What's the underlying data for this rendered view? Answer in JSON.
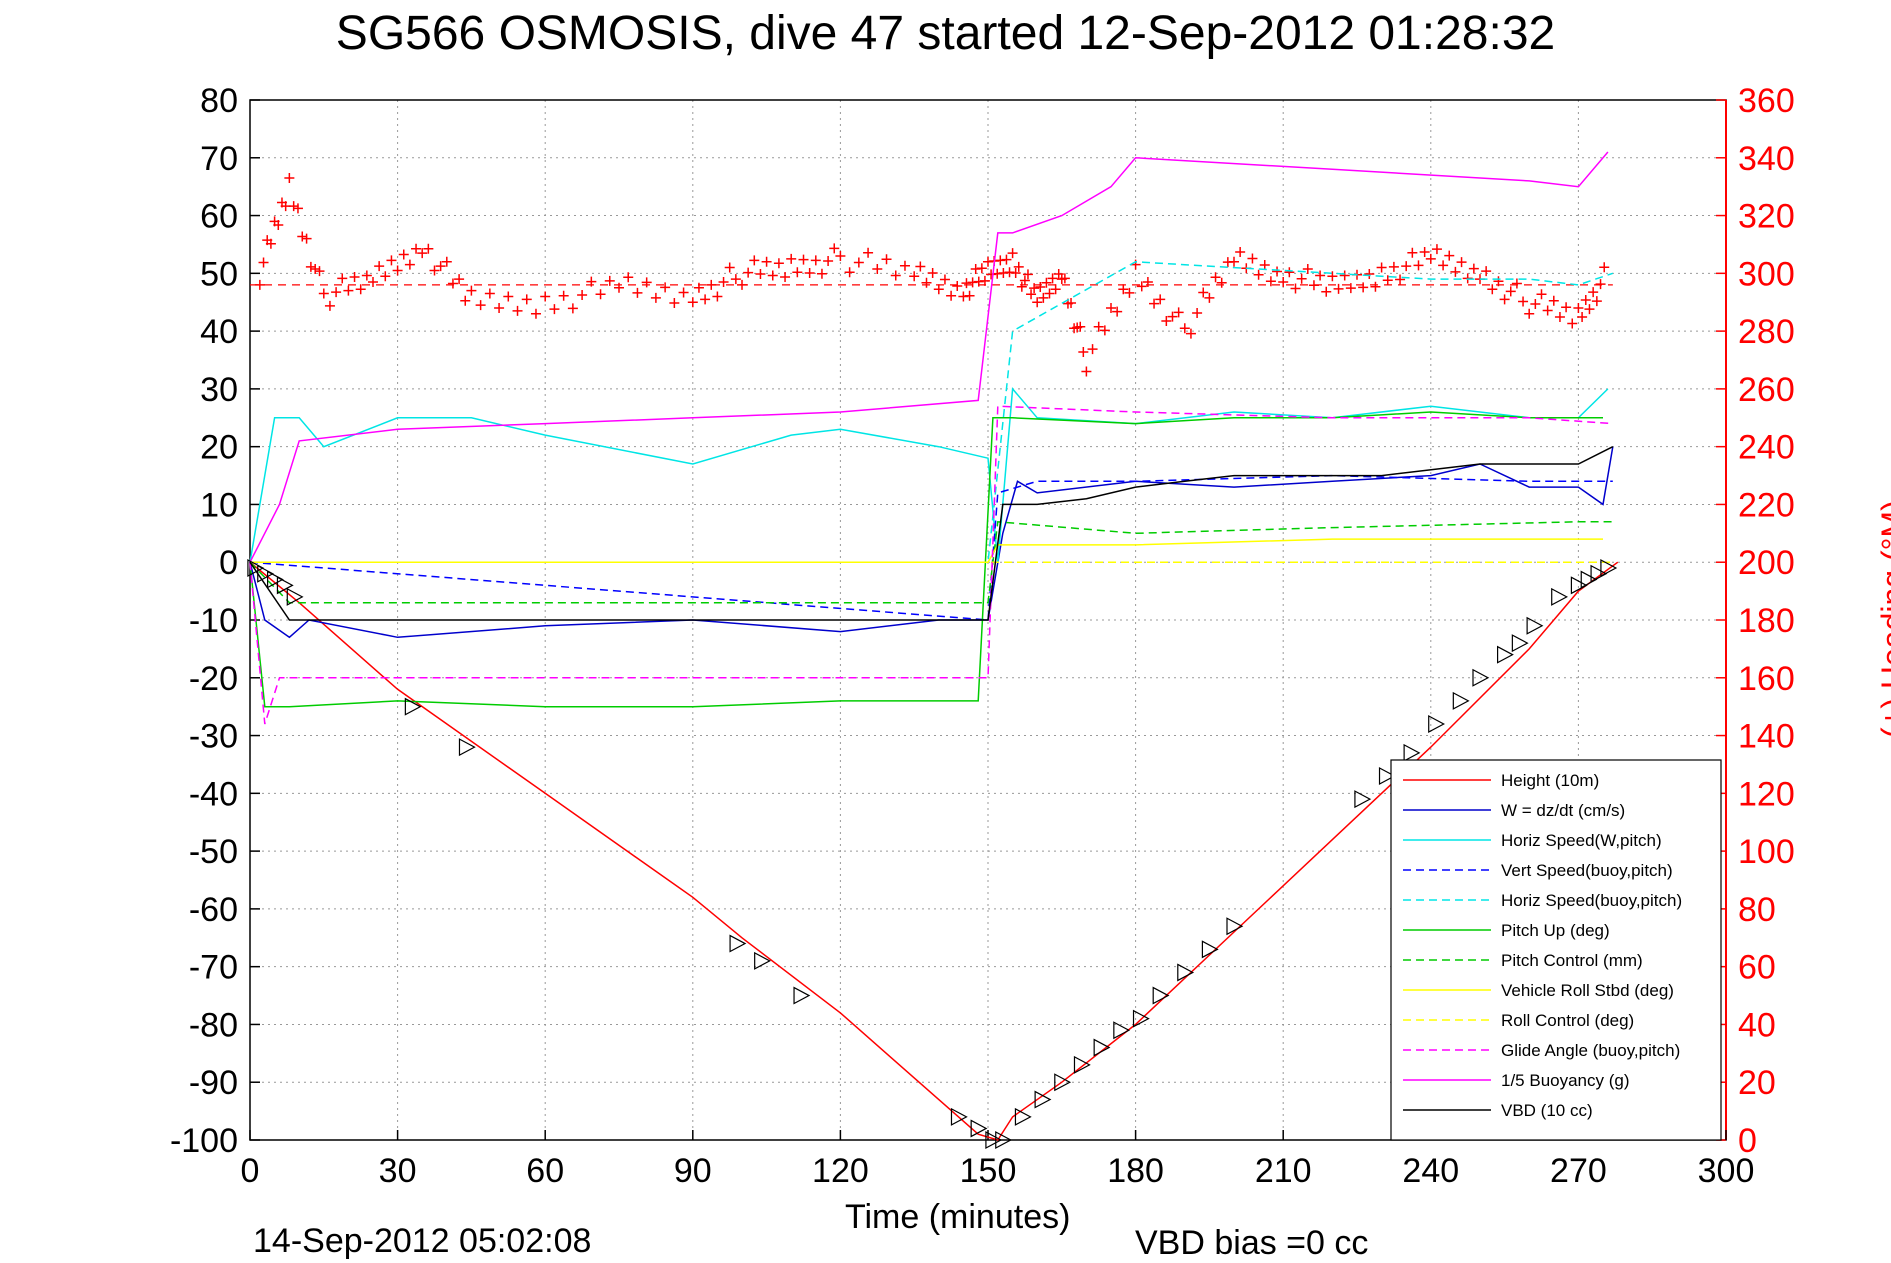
{
  "chart_data": {
    "type": "line",
    "title": "SG566 OSMOSIS, dive 47 started 12-Sep-2012 01:28:32",
    "xlabel": "Time (minutes)",
    "ylabel": "",
    "y2label": "(+) Heading (°M)",
    "footer_left": "14-Sep-2012 05:02:08",
    "footer_right": "VBD bias =0 cc",
    "xlim": [
      0,
      300
    ],
    "ylim": [
      -100,
      80
    ],
    "y2lim": [
      0,
      360
    ],
    "x_ticks": [
      0,
      30,
      60,
      90,
      120,
      150,
      180,
      210,
      240,
      270,
      300
    ],
    "y_ticks": [
      -100,
      -90,
      -80,
      -70,
      -60,
      -50,
      -40,
      -30,
      -20,
      -10,
      0,
      10,
      20,
      30,
      40,
      50,
      60,
      70,
      80
    ],
    "y2_ticks": [
      0,
      20,
      40,
      60,
      80,
      100,
      120,
      140,
      160,
      180,
      200,
      220,
      240,
      260,
      280,
      300,
      320,
      340,
      360
    ],
    "grid": true,
    "legend_position": "bottom-right",
    "series": [
      {
        "name": "Height (10m)",
        "color": "#ff0000",
        "style": "solid",
        "x": [
          0,
          10,
          30,
          60,
          90,
          100,
          120,
          140,
          148,
          152,
          155,
          165,
          180,
          200,
          220,
          240,
          260,
          270,
          278
        ],
        "y": [
          0,
          -7,
          -22,
          -40,
          -58,
          -65,
          -78,
          -93,
          -99,
          -100,
          -96,
          -90,
          -80,
          -64,
          -48,
          -32,
          -15,
          -5,
          0
        ]
      },
      {
        "name": "W = dz/dt (cm/s)",
        "color": "#0000cc",
        "style": "solid",
        "x": [
          0,
          3,
          8,
          12,
          30,
          60,
          90,
          120,
          140,
          150,
          153,
          156,
          160,
          180,
          200,
          220,
          240,
          250,
          260,
          270,
          275,
          277
        ],
        "y": [
          0,
          -10,
          -13,
          -10,
          -13,
          -11,
          -10,
          -12,
          -10,
          -10,
          5,
          14,
          12,
          14,
          13,
          14,
          15,
          17,
          13,
          13,
          10,
          20
        ]
      },
      {
        "name": "Horiz Speed(W,pitch)",
        "color": "#00e5e5",
        "style": "solid",
        "x": [
          0,
          5,
          10,
          15,
          30,
          45,
          60,
          90,
          110,
          120,
          140,
          150,
          152,
          155,
          160,
          180,
          200,
          220,
          240,
          260,
          270,
          276
        ],
        "y": [
          0,
          25,
          25,
          20,
          25,
          25,
          22,
          17,
          22,
          23,
          20,
          18,
          0,
          30,
          25,
          24,
          26,
          25,
          27,
          25,
          25,
          30
        ]
      },
      {
        "name": "Vert Speed(buoy,pitch)",
        "color": "#0000ff",
        "style": "dashed",
        "x": [
          0,
          150,
          152,
          160,
          180,
          220,
          260,
          277
        ],
        "y": [
          0,
          -10,
          12,
          14,
          14,
          15,
          14,
          14
        ]
      },
      {
        "name": "Horiz Speed(buoy,pitch)",
        "color": "#00e5e5",
        "style": "dashed",
        "x": [
          0,
          150,
          155,
          180,
          200,
          220,
          240,
          260,
          270,
          277
        ],
        "y": [
          0,
          0,
          40,
          52,
          51,
          50,
          49,
          49,
          48,
          50
        ]
      },
      {
        "name": "Pitch Up (deg)",
        "color": "#00cc00",
        "style": "solid",
        "x": [
          0,
          3,
          8,
          30,
          60,
          90,
          120,
          148,
          151,
          155,
          180,
          200,
          220,
          240,
          260,
          275
        ],
        "y": [
          0,
          -25,
          -25,
          -24,
          -25,
          -25,
          -24,
          -24,
          25,
          25,
          24,
          25,
          25,
          26,
          25,
          25
        ]
      },
      {
        "name": "Pitch Control (mm)",
        "color": "#00cc00",
        "style": "dashed",
        "x": [
          0,
          8,
          150,
          152,
          180,
          220,
          270,
          277
        ],
        "y": [
          0,
          -7,
          -7,
          7,
          5,
          6,
          7,
          7
        ]
      },
      {
        "name": "Vehicle Roll Stbd (deg)",
        "color": "#ffff00",
        "style": "solid",
        "x": [
          0,
          10,
          30,
          60,
          100,
          150,
          152,
          180,
          220,
          260,
          275
        ],
        "y": [
          0,
          0,
          0,
          0,
          0,
          0,
          3,
          3,
          4,
          4,
          4
        ]
      },
      {
        "name": "Roll Control (deg)",
        "color": "#ffff00",
        "style": "dashed",
        "x": [
          0,
          150,
          155,
          277
        ],
        "y": [
          0,
          0,
          0,
          0
        ]
      },
      {
        "name": "Glide Angle (buoy,pitch)",
        "color": "#ff00ff",
        "style": "dashed",
        "x": [
          0,
          3,
          6,
          150,
          152,
          180,
          220,
          260,
          277
        ],
        "y": [
          0,
          -28,
          -20,
          -20,
          27,
          26,
          25,
          25,
          24
        ]
      },
      {
        "name": "1/5 Buoyancy (g)",
        "color": "#ff00ff",
        "style": "solid",
        "x": [
          0,
          6,
          10,
          30,
          60,
          90,
          120,
          148,
          152,
          155,
          165,
          175,
          180,
          220,
          260,
          270,
          276
        ],
        "y": [
          0,
          10,
          21,
          23,
          24,
          25,
          26,
          28,
          57,
          57,
          60,
          65,
          70,
          68,
          66,
          65,
          71
        ]
      },
      {
        "name": "VBD (10 cc)",
        "color": "#000000",
        "style": "solid",
        "x": [
          0,
          8,
          150,
          153,
          160,
          170,
          180,
          190,
          200,
          230,
          250,
          270,
          277
        ],
        "y": [
          0,
          -10,
          -10,
          10,
          10,
          11,
          13,
          14,
          15,
          15,
          17,
          17,
          20
        ]
      }
    ],
    "heading": {
      "name": "(+) Heading (°M)",
      "color": "#ff0000",
      "marker": "+",
      "mean": 296,
      "x": [
        2,
        8,
        15,
        25,
        35,
        45,
        60,
        75,
        90,
        100,
        110,
        120,
        135,
        145,
        150,
        155,
        160,
        165,
        170,
        180,
        190,
        200,
        210,
        220,
        230,
        240,
        250,
        260,
        270,
        276
      ],
      "y": [
        300,
        330,
        292,
        298,
        310,
        290,
        290,
        295,
        292,
        300,
        302,
        305,
        300,
        295,
        300,
        305,
        290,
        300,
        270,
        300,
        280,
        305,
        300,
        295,
        300,
        305,
        300,
        290,
        285,
        300
      ]
    },
    "markers": [
      {
        "t": 1,
        "h": -1
      },
      {
        "t": 3,
        "h": -2
      },
      {
        "t": 5,
        "h": -3
      },
      {
        "t": 7,
        "h": -4
      },
      {
        "t": 9,
        "h": -6
      },
      {
        "t": 33,
        "h": -25
      },
      {
        "t": 44,
        "h": -32
      },
      {
        "t": 99,
        "h": -66
      },
      {
        "t": 104,
        "h": -69
      },
      {
        "t": 112,
        "h": -75
      },
      {
        "t": 144,
        "h": -96
      },
      {
        "t": 148,
        "h": -98
      },
      {
        "t": 151,
        "h": -100
      },
      {
        "t": 153,
        "h": -100
      },
      {
        "t": 157,
        "h": -96
      },
      {
        "t": 161,
        "h": -93
      },
      {
        "t": 165,
        "h": -90
      },
      {
        "t": 169,
        "h": -87
      },
      {
        "t": 173,
        "h": -84
      },
      {
        "t": 177,
        "h": -81
      },
      {
        "t": 181,
        "h": -79
      },
      {
        "t": 185,
        "h": -75
      },
      {
        "t": 190,
        "h": -71
      },
      {
        "t": 195,
        "h": -67
      },
      {
        "t": 200,
        "h": -63
      },
      {
        "t": 226,
        "h": -41
      },
      {
        "t": 231,
        "h": -37
      },
      {
        "t": 236,
        "h": -33
      },
      {
        "t": 241,
        "h": -28
      },
      {
        "t": 246,
        "h": -24
      },
      {
        "t": 250,
        "h": -20
      },
      {
        "t": 255,
        "h": -16
      },
      {
        "t": 258,
        "h": -14
      },
      {
        "t": 261,
        "h": -11
      },
      {
        "t": 266,
        "h": -6
      },
      {
        "t": 270,
        "h": -4
      },
      {
        "t": 272,
        "h": -3
      },
      {
        "t": 274,
        "h": -2
      },
      {
        "t": 276,
        "h": -1
      }
    ]
  }
}
